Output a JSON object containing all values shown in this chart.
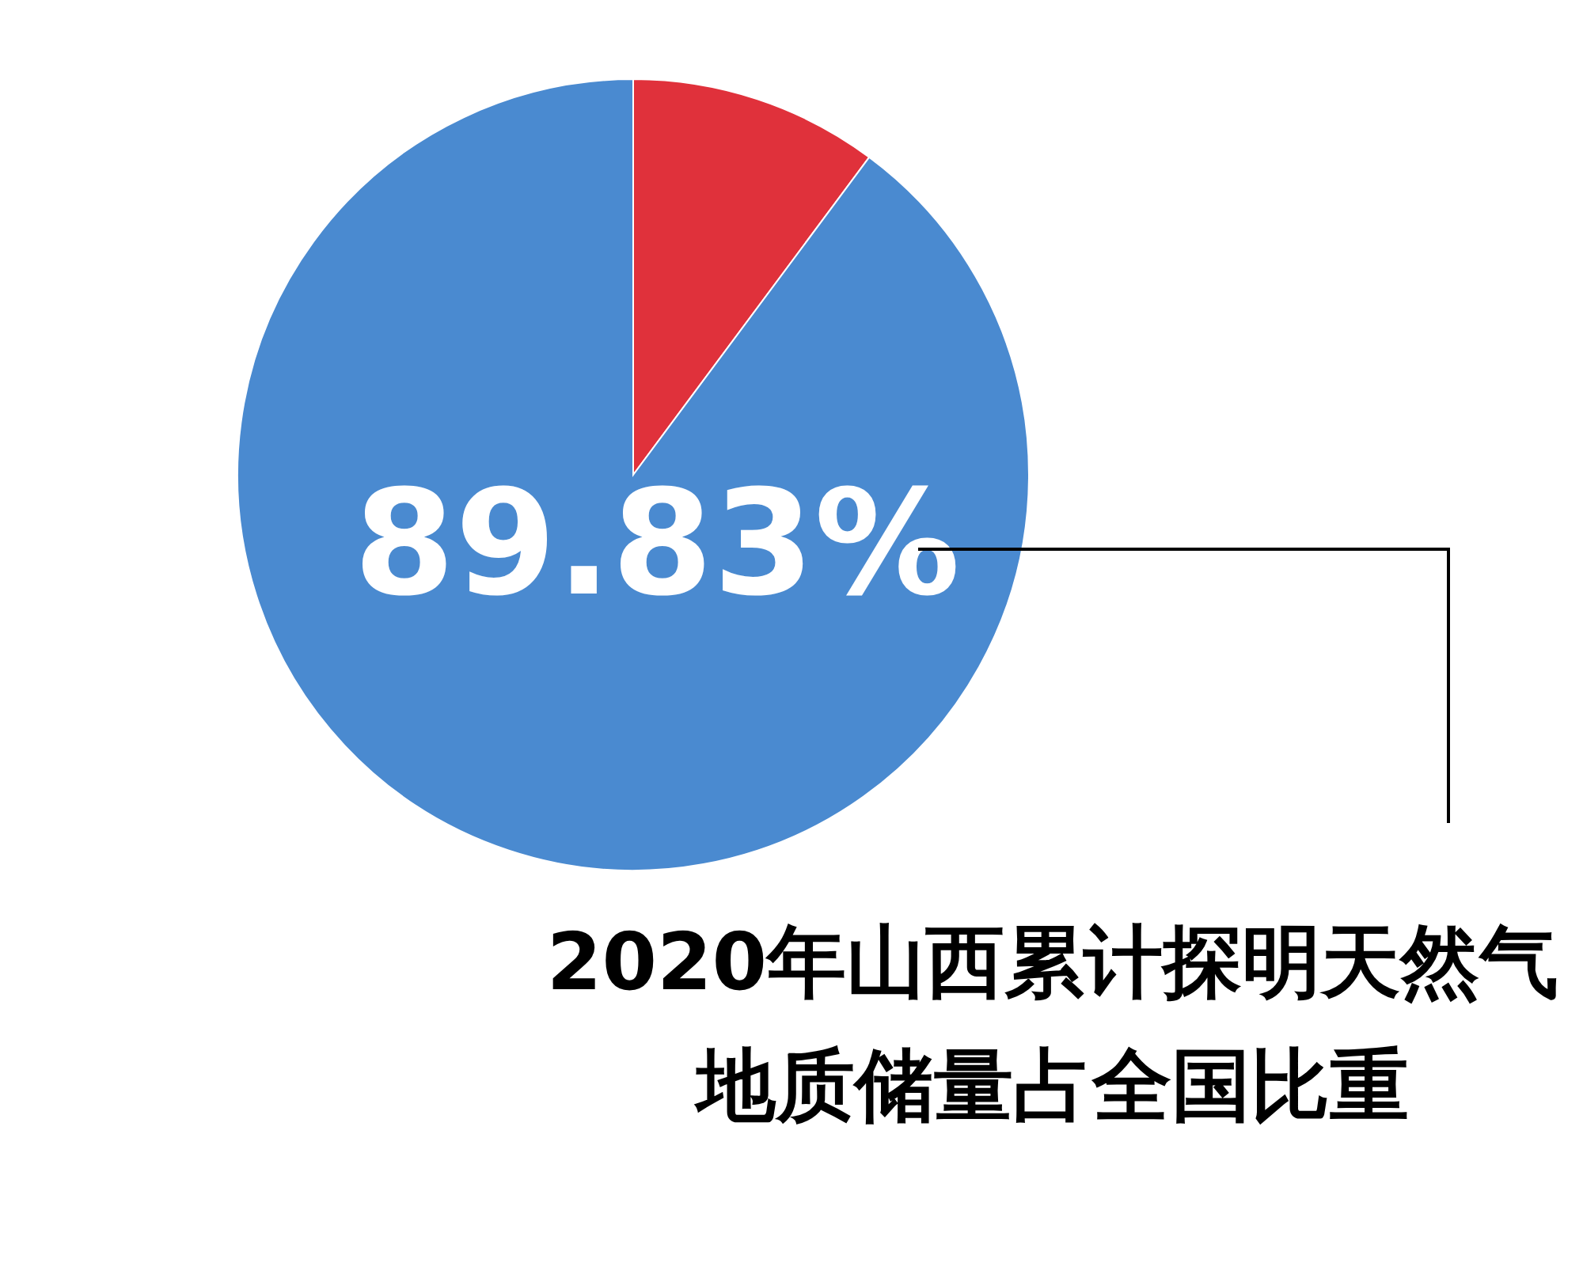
{
  "chart_data": {
    "type": "pie",
    "categories": [
      null,
      "2020年山西累计探明天然气地质储量占全国比重"
    ],
    "values": [
      10.17,
      89.83
    ],
    "colors": [
      "#e0313b",
      "#4a8ad0"
    ],
    "value_labels": [
      null,
      "89.83%"
    ]
  }
}
